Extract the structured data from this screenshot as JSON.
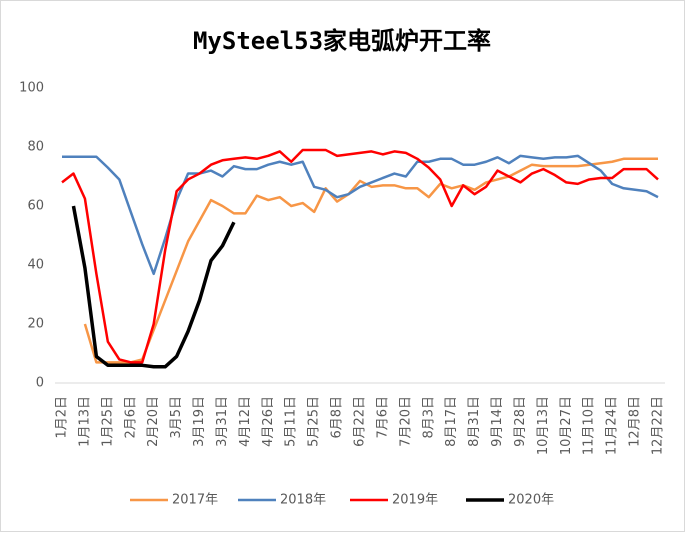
{
  "chart_data": {
    "type": "line",
    "title": "MySteel53家电弧炉开工率",
    "categories": [
      "1月2日",
      null,
      "1月13日",
      null,
      "1月25日",
      null,
      "2月6日",
      null,
      "2月20日",
      null,
      "3月5日",
      null,
      "3月19日",
      null,
      "3月31日",
      null,
      "4月12日",
      null,
      "4月26日",
      null,
      "5月11日",
      null,
      "5月25日",
      null,
      "6月8日",
      null,
      "6月22日",
      null,
      "7月6日",
      null,
      "7月20日",
      null,
      "8月3日",
      null,
      "8月17日",
      null,
      "8月31日",
      null,
      "9月14日",
      null,
      "9月28日",
      null,
      "10月13日",
      null,
      "10月27日",
      null,
      "11月10日",
      null,
      "11月24日",
      null,
      "12月8日",
      null,
      "12月22日"
    ],
    "series": [
      {
        "name": "2017年",
        "color": "#f79646",
        "values": [
          null,
          null,
          20,
          7,
          7,
          7,
          7,
          8,
          18,
          28,
          38,
          48,
          55,
          62,
          60,
          57.5,
          57.5,
          63.5,
          62,
          63,
          60,
          61,
          58,
          66,
          61.5,
          64,
          68.5,
          66.5,
          67,
          67,
          66,
          66,
          63,
          67.5,
          66,
          67,
          65.5,
          68,
          69,
          70,
          72,
          74,
          73.5,
          73.5,
          73.5,
          73.5,
          74,
          74.5,
          75,
          76,
          76,
          76,
          76
        ]
      },
      {
        "name": "2018年",
        "color": "#4f81bd",
        "values": [
          76.7,
          76.7,
          76.7,
          76.7,
          73,
          69,
          58,
          47,
          37,
          49,
          62,
          71,
          71,
          72,
          70,
          73.5,
          72.5,
          72.5,
          74,
          75,
          74,
          75,
          66.5,
          65.5,
          63,
          64,
          66.5,
          68,
          69.5,
          71,
          70,
          75,
          75,
          76,
          76,
          74,
          74,
          75,
          76.5,
          74.5,
          77,
          76.5,
          76,
          76.5,
          76.5,
          77,
          74.5,
          72,
          67.5,
          66,
          65.5,
          65,
          63
        ]
      },
      {
        "name": "2019年",
        "color": "#ff0000",
        "values": [
          68,
          71,
          62.5,
          37,
          14,
          8,
          7,
          7,
          20,
          45,
          65,
          69,
          71,
          74,
          75.5,
          76,
          76.5,
          76,
          77,
          78.5,
          75,
          79,
          79,
          79,
          77,
          77.5,
          78,
          78.5,
          77.5,
          78.5,
          78,
          76,
          73,
          69,
          60,
          67,
          64,
          66.5,
          72,
          70,
          68,
          71,
          72.5,
          70.5,
          68,
          67.5,
          69,
          69.5,
          69.5,
          72.5,
          72.5,
          72.5,
          69
        ]
      },
      {
        "name": "2020年",
        "color": "#000000",
        "values": [
          null,
          60,
          39,
          9,
          6,
          6,
          6,
          6,
          5.5,
          5.5,
          9,
          17.5,
          28,
          41.5,
          46.5,
          54.5,
          null,
          null,
          null,
          null,
          null,
          null,
          null,
          null,
          null,
          null,
          null,
          null,
          null,
          null,
          null,
          null,
          null,
          null,
          null,
          null,
          null,
          null,
          null,
          null,
          null,
          null,
          null,
          null,
          null,
          null,
          null,
          null,
          null,
          null,
          null,
          null,
          null
        ]
      }
    ],
    "ylim": [
      0,
      100
    ],
    "yticks": [
      0,
      20,
      40,
      60,
      80,
      100
    ],
    "grid": false,
    "legend": "bottom"
  }
}
